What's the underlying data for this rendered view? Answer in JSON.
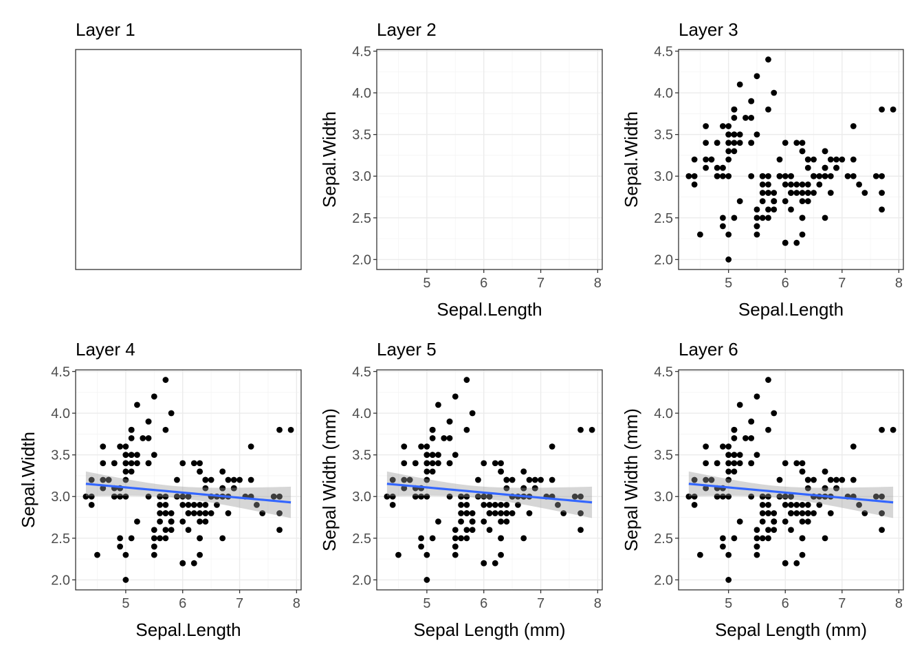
{
  "chart_data": [
    {
      "type": "blank",
      "title": "Layer 1",
      "xlabel": "",
      "ylabel": ""
    },
    {
      "type": "scatter",
      "title": "Layer 2",
      "xlabel": "Sepal.Length",
      "ylabel": "Sepal.Width",
      "xlim": [
        4.12,
        8.08
      ],
      "ylim": [
        1.88,
        4.52
      ],
      "x_ticks": [
        5,
        6,
        7,
        8
      ],
      "y_ticks": [
        2.0,
        2.5,
        3.0,
        3.5,
        4.0,
        4.5
      ],
      "x_tick_labels": [
        "5",
        "6",
        "7",
        "8"
      ],
      "y_tick_labels": [
        "2.0",
        "2.5",
        "3.0",
        "3.5",
        "4.0",
        "4.5"
      ],
      "grid": true,
      "show_points": false,
      "show_smooth": false
    },
    {
      "type": "scatter",
      "title": "Layer 3",
      "xlabel": "Sepal.Length",
      "ylabel": "Sepal.Width",
      "xlim": [
        4.12,
        8.08
      ],
      "ylim": [
        1.88,
        4.52
      ],
      "x_ticks": [
        5,
        6,
        7,
        8
      ],
      "y_ticks": [
        2.0,
        2.5,
        3.0,
        3.5,
        4.0,
        4.5
      ],
      "x_tick_labels": [
        "5",
        "6",
        "7",
        "8"
      ],
      "y_tick_labels": [
        "2.0",
        "2.5",
        "3.0",
        "3.5",
        "4.0",
        "4.5"
      ],
      "grid": true,
      "show_points": true,
      "show_smooth": false
    },
    {
      "type": "scatter",
      "title": "Layer 4",
      "xlabel": "Sepal.Length",
      "ylabel": "Sepal.Width",
      "xlim": [
        4.12,
        8.08
      ],
      "ylim": [
        1.88,
        4.52
      ],
      "x_ticks": [
        5,
        6,
        7,
        8
      ],
      "y_ticks": [
        2.0,
        2.5,
        3.0,
        3.5,
        4.0,
        4.5
      ],
      "x_tick_labels": [
        "5",
        "6",
        "7",
        "8"
      ],
      "y_tick_labels": [
        "2.0",
        "2.5",
        "3.0",
        "3.5",
        "4.0",
        "4.5"
      ],
      "grid": true,
      "show_points": true,
      "show_smooth": true
    },
    {
      "type": "scatter",
      "title": "Layer 5",
      "xlabel": "Sepal Length (mm)",
      "ylabel": "Sepal Width (mm)",
      "xlim": [
        4.12,
        8.08
      ],
      "ylim": [
        1.88,
        4.52
      ],
      "x_ticks": [
        5,
        6,
        7,
        8
      ],
      "y_ticks": [
        2.0,
        2.5,
        3.0,
        3.5,
        4.0,
        4.5
      ],
      "x_tick_labels": [
        "5",
        "6",
        "7",
        "8"
      ],
      "y_tick_labels": [
        "2.0",
        "2.5",
        "3.0",
        "3.5",
        "4.0",
        "4.5"
      ],
      "grid": true,
      "show_points": true,
      "show_smooth": true
    },
    {
      "type": "scatter",
      "title": "Layer 6",
      "xlabel": "Sepal Length (mm)",
      "ylabel": "Sepal Width (mm)",
      "xlim": [
        4.12,
        8.08
      ],
      "ylim": [
        1.88,
        4.52
      ],
      "x_ticks": [
        5,
        6,
        7,
        8
      ],
      "y_ticks": [
        2.0,
        2.5,
        3.0,
        3.5,
        4.0,
        4.5
      ],
      "x_tick_labels": [
        "5",
        "6",
        "7",
        "8"
      ],
      "y_tick_labels": [
        "2.0",
        "2.5",
        "3.0",
        "3.5",
        "4.0",
        "4.5"
      ],
      "grid": true,
      "grid_minor_x": false,
      "show_points": true,
      "show_smooth": true
    }
  ],
  "points": {
    "x": [
      5.1,
      4.9,
      4.7,
      4.6,
      5.0,
      5.4,
      4.6,
      5.0,
      4.4,
      4.9,
      5.4,
      4.8,
      4.8,
      4.3,
      5.8,
      5.7,
      5.4,
      5.1,
      5.7,
      5.1,
      5.4,
      5.1,
      4.6,
      5.1,
      4.8,
      5.0,
      5.0,
      5.2,
      5.2,
      4.7,
      4.8,
      5.4,
      5.2,
      5.5,
      4.9,
      5.0,
      5.5,
      4.9,
      4.4,
      5.1,
      5.0,
      4.5,
      4.4,
      5.0,
      5.1,
      4.8,
      5.1,
      4.6,
      5.3,
      5.0,
      7.0,
      6.4,
      6.9,
      5.5,
      6.5,
      5.7,
      6.3,
      4.9,
      6.6,
      5.2,
      5.0,
      5.9,
      6.0,
      6.1,
      5.6,
      6.7,
      5.6,
      5.8,
      6.2,
      5.6,
      5.9,
      6.1,
      6.3,
      6.1,
      6.4,
      6.6,
      6.8,
      6.7,
      6.0,
      5.7,
      5.5,
      5.5,
      5.8,
      6.0,
      5.4,
      6.0,
      6.7,
      6.3,
      5.6,
      5.5,
      5.5,
      6.1,
      5.8,
      5.0,
      5.6,
      5.7,
      5.7,
      6.2,
      5.1,
      5.7,
      6.3,
      5.8,
      7.1,
      6.3,
      6.5,
      7.6,
      4.9,
      7.3,
      6.7,
      7.2,
      6.5,
      6.4,
      6.8,
      5.7,
      5.8,
      6.4,
      6.5,
      7.7,
      7.7,
      6.0,
      6.9,
      5.6,
      7.7,
      6.3,
      6.7,
      7.2,
      6.2,
      6.1,
      6.4,
      7.2,
      7.4,
      7.9,
      6.4,
      6.3,
      6.1,
      7.7,
      6.3,
      6.4,
      6.0,
      6.9,
      6.7,
      6.9,
      5.8,
      6.8,
      6.7,
      6.7,
      6.3,
      6.5,
      6.2,
      5.9
    ],
    "y": [
      3.5,
      3.0,
      3.2,
      3.1,
      3.6,
      3.9,
      3.4,
      3.4,
      2.9,
      3.1,
      3.7,
      3.4,
      3.0,
      3.0,
      4.0,
      4.4,
      3.9,
      3.5,
      3.8,
      3.8,
      3.4,
      3.7,
      3.6,
      3.3,
      3.4,
      3.0,
      3.4,
      3.5,
      3.4,
      3.2,
      3.1,
      3.4,
      4.1,
      4.2,
      3.1,
      3.2,
      3.5,
      3.6,
      3.0,
      3.4,
      3.5,
      2.3,
      3.2,
      3.5,
      3.8,
      3.0,
      3.8,
      3.2,
      3.7,
      3.3,
      3.2,
      3.2,
      3.1,
      2.3,
      2.8,
      2.8,
      3.3,
      2.4,
      2.9,
      2.7,
      2.0,
      3.0,
      2.2,
      2.9,
      2.9,
      3.1,
      3.0,
      2.7,
      2.2,
      2.5,
      3.2,
      2.8,
      2.5,
      2.8,
      2.9,
      3.0,
      2.8,
      3.0,
      2.9,
      2.6,
      2.4,
      2.4,
      2.7,
      2.7,
      3.0,
      3.4,
      3.1,
      2.3,
      3.0,
      2.5,
      2.6,
      3.0,
      2.6,
      2.3,
      2.7,
      3.0,
      2.9,
      2.9,
      2.5,
      2.8,
      3.3,
      2.7,
      3.0,
      2.9,
      3.0,
      3.0,
      2.5,
      2.9,
      2.5,
      3.6,
      3.2,
      2.7,
      3.0,
      2.5,
      2.8,
      3.2,
      3.0,
      3.8,
      2.6,
      2.2,
      3.2,
      2.8,
      2.8,
      2.7,
      3.3,
      3.2,
      2.8,
      3.0,
      2.8,
      3.0,
      2.8,
      3.8,
      2.8,
      2.8,
      2.6,
      3.0,
      3.4,
      3.1,
      3.0,
      3.1,
      3.1,
      3.1,
      2.7,
      3.2,
      3.3,
      3.0,
      2.5,
      3.0,
      3.4,
      3.0
    ]
  },
  "colors": {
    "point": "#000000",
    "smooth_line": "#3366FF",
    "smooth_band": "#999999",
    "grid": "#ebebeb",
    "frame": "#333333",
    "tick_label": "#4d4d4d"
  }
}
